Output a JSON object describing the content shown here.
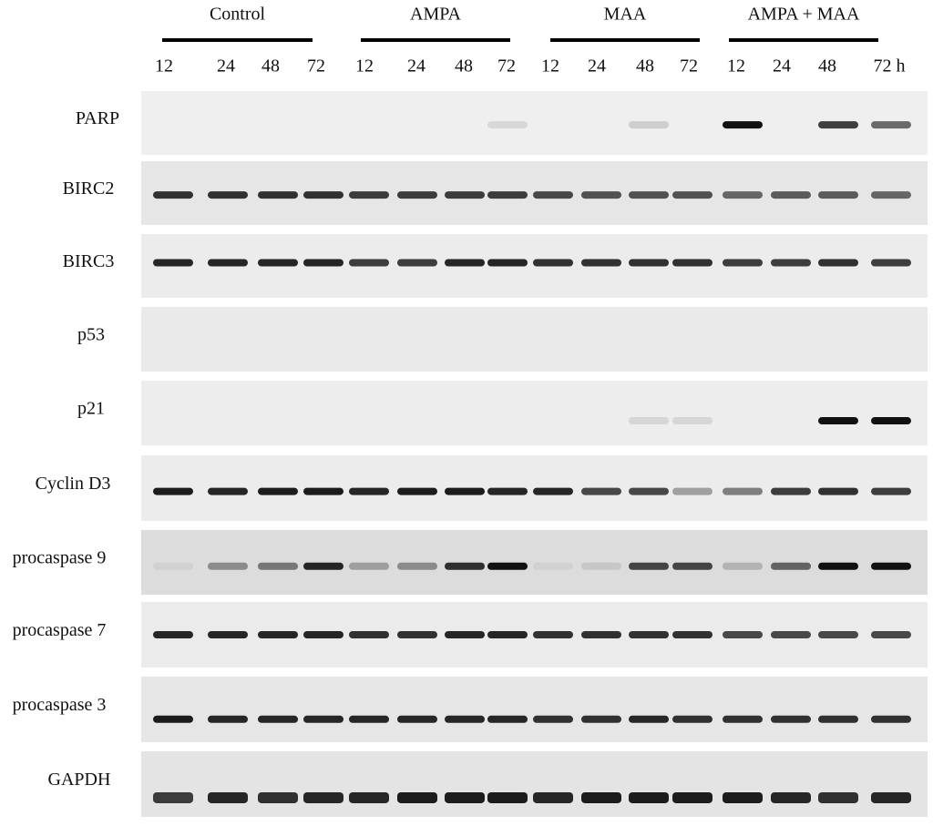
{
  "groups": [
    "Control",
    "AMPA",
    "MAA",
    "AMPA + MAA"
  ],
  "time_points": [
    "12",
    "24",
    "48",
    "72",
    "12",
    "24",
    "48",
    "72",
    "12",
    "24",
    "48",
    "72",
    "12",
    "24",
    "48",
    "72 h"
  ],
  "rows": [
    "PARP",
    "BIRC2",
    "BIRC3",
    "p53",
    "p21",
    "Cyclin D3",
    "procaspase 9",
    "procaspase 7",
    "procaspase 3",
    "GAPDH"
  ]
}
